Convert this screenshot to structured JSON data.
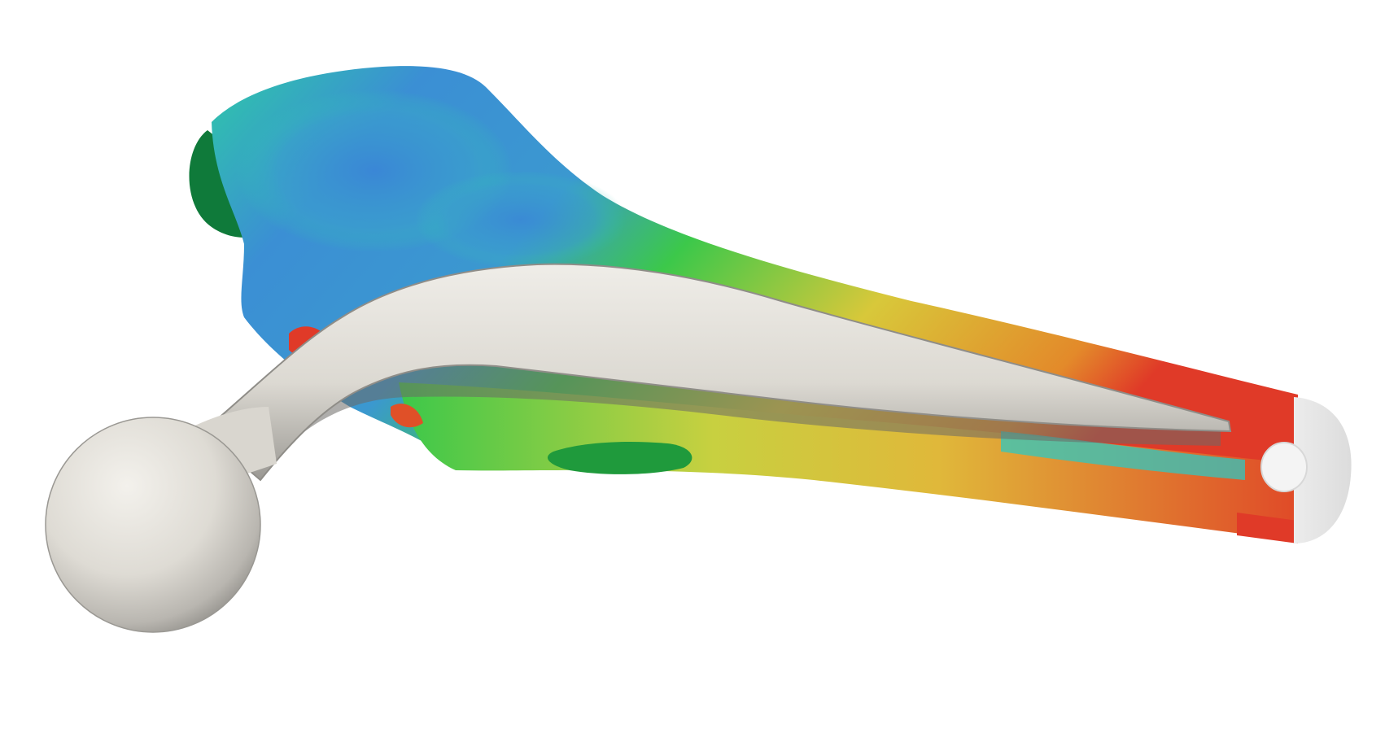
{
  "scene": {
    "background": "#ffffff",
    "subject": "femur-with-hip-implant",
    "colormap": {
      "name": "rainbow",
      "low": "#3b8fd4",
      "mid_low": "#2ec8c0",
      "mid": "#3cc84a",
      "mid_high": "#d8c83a",
      "high": "#e03a28"
    },
    "implant_color": "#e8e6e0",
    "bone_edge_color": "#0f7a3a"
  }
}
